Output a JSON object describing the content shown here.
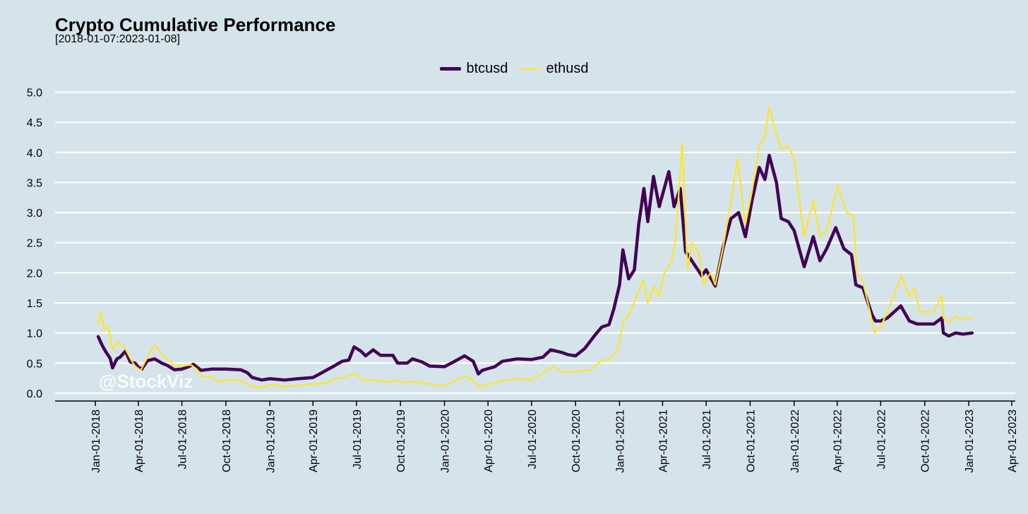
{
  "chart_data": {
    "type": "line",
    "title": "Crypto Cumulative Performance",
    "subtitle": "[2018-01-07:2023-01-08]",
    "watermark": "@StockViz",
    "xlabel": "",
    "ylabel": "",
    "ylim": [
      -0.13,
      5.03
    ],
    "y_ticks": [
      0.0,
      0.5,
      1.0,
      1.5,
      2.0,
      2.5,
      3.0,
      3.5,
      4.0,
      4.5,
      5.0
    ],
    "y_tick_labels": [
      "0.0",
      "0.5",
      "1.0",
      "1.5",
      "2.0",
      "2.5",
      "3.0",
      "3.5",
      "4.0",
      "4.5",
      "5.0"
    ],
    "x_ticks": [
      "2018-01-01",
      "2018-04-01",
      "2018-07-01",
      "2018-10-01",
      "2019-01-01",
      "2019-04-01",
      "2019-07-01",
      "2019-10-01",
      "2020-01-01",
      "2020-04-01",
      "2020-07-01",
      "2020-10-01",
      "2021-01-01",
      "2021-04-01",
      "2021-07-01",
      "2021-10-01",
      "2022-01-01",
      "2022-04-01",
      "2022-07-01",
      "2022-10-01",
      "2023-01-01",
      "2023-04-01"
    ],
    "x_tick_labels": [
      "Jan-01-2018",
      "Apr-01-2018",
      "Jul-01-2018",
      "Oct-01-2018",
      "Jan-01-2019",
      "Apr-01-2019",
      "Jul-01-2019",
      "Oct-01-2019",
      "Jan-01-2020",
      "Apr-01-2020",
      "Jul-01-2020",
      "Oct-01-2020",
      "Jan-01-2021",
      "Apr-01-2021",
      "Jul-01-2021",
      "Oct-01-2021",
      "Jan-01-2022",
      "Apr-01-2022",
      "Jul-01-2022",
      "Oct-01-2022",
      "Jan-01-2023",
      "Apr-01-2023"
    ],
    "legend_position": "top-center",
    "grid": true,
    "series": [
      {
        "name": "btcusd",
        "color": "#440154",
        "points": [
          [
            "2018-01-07",
            0.94
          ],
          [
            "2018-01-15",
            0.8
          ],
          [
            "2018-01-22",
            0.7
          ],
          [
            "2018-02-01",
            0.58
          ],
          [
            "2018-02-06",
            0.42
          ],
          [
            "2018-02-15",
            0.57
          ],
          [
            "2018-02-22",
            0.6
          ],
          [
            "2018-03-05",
            0.7
          ],
          [
            "2018-03-15",
            0.52
          ],
          [
            "2018-03-25",
            0.5
          ],
          [
            "2018-04-01",
            0.43
          ],
          [
            "2018-04-08",
            0.4
          ],
          [
            "2018-04-20",
            0.54
          ],
          [
            "2018-05-05",
            0.57
          ],
          [
            "2018-05-20",
            0.5
          ],
          [
            "2018-06-01",
            0.46
          ],
          [
            "2018-06-15",
            0.39
          ],
          [
            "2018-07-01",
            0.4
          ],
          [
            "2018-07-15",
            0.44
          ],
          [
            "2018-07-25",
            0.48
          ],
          [
            "2018-08-10",
            0.38
          ],
          [
            "2018-09-01",
            0.4
          ],
          [
            "2018-10-01",
            0.4
          ],
          [
            "2018-11-01",
            0.39
          ],
          [
            "2018-11-15",
            0.34
          ],
          [
            "2018-11-25",
            0.26
          ],
          [
            "2018-12-15",
            0.22
          ],
          [
            "2019-01-01",
            0.24
          ],
          [
            "2019-02-01",
            0.22
          ],
          [
            "2019-03-01",
            0.24
          ],
          [
            "2019-04-01",
            0.26
          ],
          [
            "2019-04-15",
            0.32
          ],
          [
            "2019-05-15",
            0.45
          ],
          [
            "2019-06-01",
            0.53
          ],
          [
            "2019-06-15",
            0.55
          ],
          [
            "2019-06-26",
            0.77
          ],
          [
            "2019-07-10",
            0.7
          ],
          [
            "2019-07-20",
            0.62
          ],
          [
            "2019-08-05",
            0.72
          ],
          [
            "2019-08-20",
            0.63
          ],
          [
            "2019-09-15",
            0.63
          ],
          [
            "2019-09-25",
            0.5
          ],
          [
            "2019-10-15",
            0.5
          ],
          [
            "2019-10-26",
            0.57
          ],
          [
            "2019-11-15",
            0.52
          ],
          [
            "2019-12-01",
            0.45
          ],
          [
            "2020-01-01",
            0.44
          ],
          [
            "2020-01-20",
            0.52
          ],
          [
            "2020-02-12",
            0.62
          ],
          [
            "2020-03-01",
            0.53
          ],
          [
            "2020-03-12",
            0.32
          ],
          [
            "2020-03-20",
            0.38
          ],
          [
            "2020-04-15",
            0.44
          ],
          [
            "2020-05-01",
            0.53
          ],
          [
            "2020-06-01",
            0.57
          ],
          [
            "2020-07-01",
            0.56
          ],
          [
            "2020-07-25",
            0.6
          ],
          [
            "2020-08-10",
            0.72
          ],
          [
            "2020-09-01",
            0.68
          ],
          [
            "2020-09-15",
            0.64
          ],
          [
            "2020-10-01",
            0.62
          ],
          [
            "2020-10-20",
            0.74
          ],
          [
            "2020-11-10",
            0.96
          ],
          [
            "2020-11-25",
            1.1
          ],
          [
            "2020-12-10",
            1.14
          ],
          [
            "2020-12-20",
            1.4
          ],
          [
            "2021-01-01",
            1.8
          ],
          [
            "2021-01-08",
            2.38
          ],
          [
            "2021-01-20",
            1.9
          ],
          [
            "2021-02-01",
            2.05
          ],
          [
            "2021-02-10",
            2.8
          ],
          [
            "2021-02-21",
            3.4
          ],
          [
            "2021-03-01",
            2.85
          ],
          [
            "2021-03-13",
            3.6
          ],
          [
            "2021-03-25",
            3.1
          ],
          [
            "2021-04-14",
            3.68
          ],
          [
            "2021-04-25",
            3.1
          ],
          [
            "2021-05-08",
            3.4
          ],
          [
            "2021-05-19",
            2.35
          ],
          [
            "2021-06-01",
            2.2
          ],
          [
            "2021-06-22",
            1.95
          ],
          [
            "2021-07-01",
            2.05
          ],
          [
            "2021-07-20",
            1.78
          ],
          [
            "2021-08-05",
            2.4
          ],
          [
            "2021-08-22",
            2.9
          ],
          [
            "2021-09-07",
            3.0
          ],
          [
            "2021-09-21",
            2.6
          ],
          [
            "2021-10-05",
            3.2
          ],
          [
            "2021-10-20",
            3.75
          ],
          [
            "2021-11-01",
            3.55
          ],
          [
            "2021-11-10",
            3.95
          ],
          [
            "2021-11-25",
            3.5
          ],
          [
            "2021-12-05",
            2.9
          ],
          [
            "2021-12-20",
            2.85
          ],
          [
            "2022-01-01",
            2.7
          ],
          [
            "2022-01-22",
            2.1
          ],
          [
            "2022-02-10",
            2.6
          ],
          [
            "2022-02-24",
            2.2
          ],
          [
            "2022-03-10",
            2.4
          ],
          [
            "2022-03-29",
            2.75
          ],
          [
            "2022-04-15",
            2.4
          ],
          [
            "2022-05-01",
            2.3
          ],
          [
            "2022-05-10",
            1.8
          ],
          [
            "2022-05-25",
            1.75
          ],
          [
            "2022-06-13",
            1.3
          ],
          [
            "2022-06-20",
            1.2
          ],
          [
            "2022-07-01",
            1.2
          ],
          [
            "2022-07-15",
            1.25
          ],
          [
            "2022-08-12",
            1.45
          ],
          [
            "2022-08-30",
            1.2
          ],
          [
            "2022-09-15",
            1.15
          ],
          [
            "2022-10-01",
            1.15
          ],
          [
            "2022-10-20",
            1.15
          ],
          [
            "2022-11-06",
            1.25
          ],
          [
            "2022-11-09",
            1.0
          ],
          [
            "2022-11-20",
            0.95
          ],
          [
            "2022-12-05",
            1.0
          ],
          [
            "2022-12-20",
            0.98
          ],
          [
            "2023-01-08",
            1.0
          ]
        ]
      },
      {
        "name": "ethusd",
        "color": "#fde725",
        "points": [
          [
            "2018-01-07",
            1.15
          ],
          [
            "2018-01-13",
            1.35
          ],
          [
            "2018-01-20",
            1.05
          ],
          [
            "2018-01-28",
            1.1
          ],
          [
            "2018-02-06",
            0.72
          ],
          [
            "2018-02-15",
            0.85
          ],
          [
            "2018-03-01",
            0.8
          ],
          [
            "2018-03-15",
            0.58
          ],
          [
            "2018-03-25",
            0.45
          ],
          [
            "2018-04-06",
            0.38
          ],
          [
            "2018-04-20",
            0.6
          ],
          [
            "2018-05-05",
            0.8
          ],
          [
            "2018-05-20",
            0.65
          ],
          [
            "2018-06-01",
            0.58
          ],
          [
            "2018-06-15",
            0.45
          ],
          [
            "2018-07-01",
            0.45
          ],
          [
            "2018-07-20",
            0.47
          ],
          [
            "2018-08-01",
            0.4
          ],
          [
            "2018-08-14",
            0.27
          ],
          [
            "2018-09-01",
            0.28
          ],
          [
            "2018-09-12",
            0.19
          ],
          [
            "2018-10-01",
            0.22
          ],
          [
            "2018-11-01",
            0.21
          ],
          [
            "2018-11-20",
            0.13
          ],
          [
            "2018-12-14",
            0.09
          ],
          [
            "2019-01-01",
            0.14
          ],
          [
            "2019-02-01",
            0.11
          ],
          [
            "2019-03-01",
            0.13
          ],
          [
            "2019-04-01",
            0.15
          ],
          [
            "2019-05-01",
            0.17
          ],
          [
            "2019-05-20",
            0.25
          ],
          [
            "2019-06-01",
            0.25
          ],
          [
            "2019-06-26",
            0.33
          ],
          [
            "2019-07-15",
            0.22
          ],
          [
            "2019-08-05",
            0.22
          ],
          [
            "2019-09-01",
            0.18
          ],
          [
            "2019-09-20",
            0.22
          ],
          [
            "2019-10-01",
            0.18
          ],
          [
            "2019-11-01",
            0.19
          ],
          [
            "2019-12-15",
            0.13
          ],
          [
            "2020-01-01",
            0.13
          ],
          [
            "2020-02-14",
            0.28
          ],
          [
            "2020-03-01",
            0.22
          ],
          [
            "2020-03-12",
            0.11
          ],
          [
            "2020-04-01",
            0.14
          ],
          [
            "2020-05-01",
            0.21
          ],
          [
            "2020-06-01",
            0.24
          ],
          [
            "2020-07-01",
            0.22
          ],
          [
            "2020-07-25",
            0.33
          ],
          [
            "2020-08-15",
            0.45
          ],
          [
            "2020-09-05",
            0.35
          ],
          [
            "2020-10-01",
            0.36
          ],
          [
            "2020-11-01",
            0.38
          ],
          [
            "2020-11-25",
            0.55
          ],
          [
            "2020-12-10",
            0.55
          ],
          [
            "2020-12-27",
            0.7
          ],
          [
            "2021-01-10",
            1.2
          ],
          [
            "2021-01-20",
            1.3
          ],
          [
            "2021-02-05",
            1.6
          ],
          [
            "2021-02-20",
            1.88
          ],
          [
            "2021-03-01",
            1.5
          ],
          [
            "2021-03-15",
            1.78
          ],
          [
            "2021-03-25",
            1.6
          ],
          [
            "2021-04-05",
            2.0
          ],
          [
            "2021-04-20",
            2.2
          ],
          [
            "2021-04-28",
            2.55
          ],
          [
            "2021-05-12",
            4.15
          ],
          [
            "2021-05-23",
            2.05
          ],
          [
            "2021-06-01",
            2.5
          ],
          [
            "2021-06-15",
            2.35
          ],
          [
            "2021-06-26",
            1.8
          ],
          [
            "2021-07-10",
            2.0
          ],
          [
            "2021-07-20",
            1.8
          ],
          [
            "2021-08-05",
            2.4
          ],
          [
            "2021-08-20",
            3.1
          ],
          [
            "2021-09-05",
            3.9
          ],
          [
            "2021-09-21",
            2.8
          ],
          [
            "2021-10-05",
            3.35
          ],
          [
            "2021-10-20",
            4.1
          ],
          [
            "2021-11-01",
            4.25
          ],
          [
            "2021-11-10",
            4.75
          ],
          [
            "2021-11-25",
            4.3
          ],
          [
            "2021-12-05",
            4.05
          ],
          [
            "2021-12-20",
            4.1
          ],
          [
            "2022-01-01",
            3.9
          ],
          [
            "2022-01-22",
            2.6
          ],
          [
            "2022-02-10",
            3.2
          ],
          [
            "2022-02-24",
            2.6
          ],
          [
            "2022-03-10",
            2.7
          ],
          [
            "2022-04-02",
            3.45
          ],
          [
            "2022-04-20",
            3.0
          ],
          [
            "2022-05-05",
            2.95
          ],
          [
            "2022-05-12",
            2.0
          ],
          [
            "2022-05-25",
            1.85
          ],
          [
            "2022-06-13",
            1.2
          ],
          [
            "2022-06-18",
            1.0
          ],
          [
            "2022-07-01",
            1.1
          ],
          [
            "2022-07-20",
            1.45
          ],
          [
            "2022-08-13",
            1.95
          ],
          [
            "2022-08-30",
            1.6
          ],
          [
            "2022-09-10",
            1.75
          ],
          [
            "2022-09-20",
            1.35
          ],
          [
            "2022-10-01",
            1.35
          ],
          [
            "2022-10-20",
            1.35
          ],
          [
            "2022-11-06",
            1.62
          ],
          [
            "2022-11-09",
            1.25
          ],
          [
            "2022-11-20",
            1.18
          ],
          [
            "2022-12-05",
            1.28
          ],
          [
            "2022-12-20",
            1.22
          ],
          [
            "2023-01-08",
            1.25
          ]
        ]
      }
    ]
  }
}
